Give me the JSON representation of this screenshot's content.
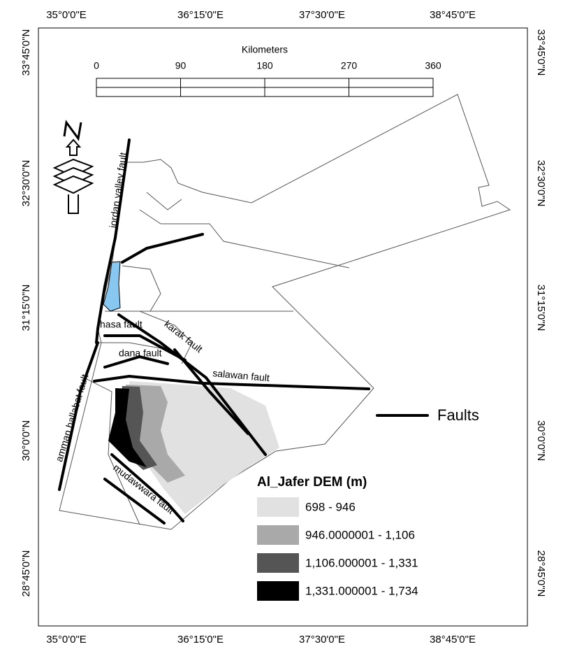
{
  "graticule": {
    "top": [
      "35°0'0\"E",
      "36°15'0\"E",
      "37°30'0\"E",
      "38°45'0\"E"
    ],
    "bottom": [
      "35°0'0\"E",
      "36°15'0\"E",
      "37°30'0\"E",
      "38°45'0\"E"
    ],
    "left": [
      "33°45'0\"N",
      "32°30'0\"N",
      "31°15'0\"N",
      "30°0'0\"N",
      "28°45'0\"N"
    ],
    "right": [
      "33°45'0\"N",
      "32°30'0\"N",
      "31°15'0\"N",
      "30°0'0\"N",
      "28°45'0\"N"
    ]
  },
  "scale_bar": {
    "title": "Kilometers",
    "ticks": [
      0,
      90,
      180,
      270,
      360
    ]
  },
  "faults": [
    "jordan valley fault",
    "hasa fault",
    "karak fault",
    "dana fault",
    "salawan fault",
    "amman hallabat fault",
    "mudawwara fault"
  ],
  "legend": {
    "title": "Al_Jafer DEM (m)",
    "classes": [
      {
        "label": "698 - 946",
        "color": "#e1e1e1"
      },
      {
        "label": "946.0000001 - 1,106",
        "color": "#a9a9a9"
      },
      {
        "label": "1,106.000001 - 1,331",
        "color": "#555555"
      },
      {
        "label": "1,331.000001 - 1,734",
        "color": "#000000"
      }
    ],
    "faults_label": "Faults"
  }
}
